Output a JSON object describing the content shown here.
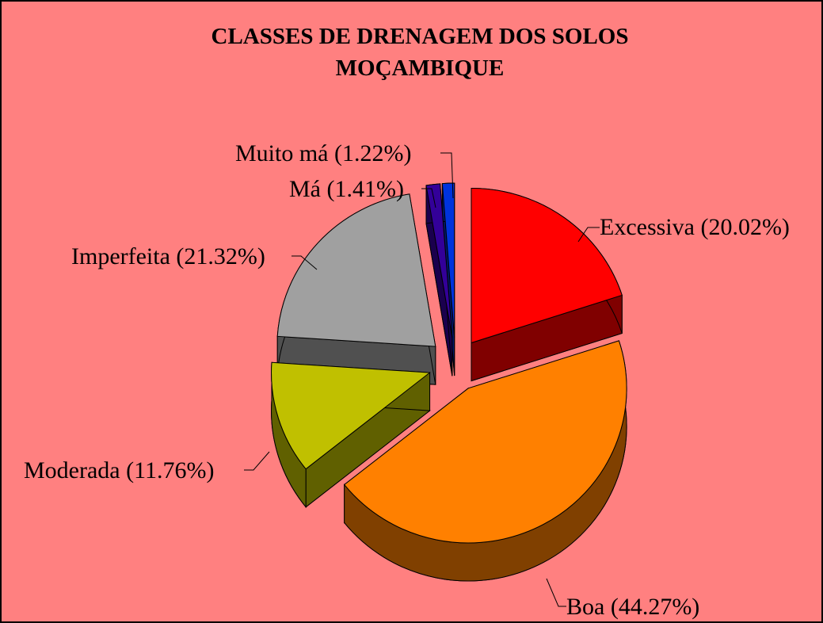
{
  "chart_data": {
    "type": "pie",
    "title": "CLASSES DE DRENAGEM DOS SOLOS",
    "subtitle": "MOÇAMBIQUE",
    "categories": [
      "Excessiva (20.02%)",
      "Boa (44.27%)",
      "Moderada (11.76%)",
      "Imperfeita (21.32%)",
      "Má (1.41%)",
      "Muito má (1.22%)"
    ],
    "values": [
      20.02,
      44.27,
      11.76,
      21.32,
      1.41,
      1.22
    ],
    "colors": [
      "#ff0000",
      "#ff8000",
      "#c0c000",
      "#a0a0a0",
      "#330099",
      "#0033dd"
    ],
    "background": "#ff8080"
  }
}
